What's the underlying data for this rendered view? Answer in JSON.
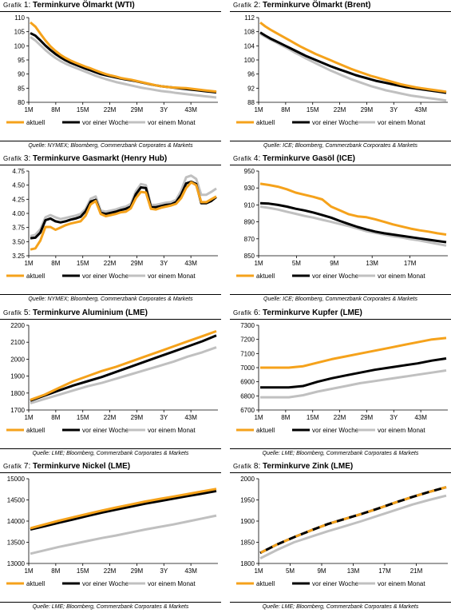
{
  "legend": {
    "aktuell": "aktuell",
    "woche": "vor einer Woche",
    "monat": "vor einem Monat"
  },
  "colors": {
    "aktuell": "#f5a21b",
    "woche": "#000000",
    "monat": "#c0c0c0"
  },
  "chart_data": [
    {
      "type": "line",
      "title_prefix": "Grafik",
      "title_num": "1:",
      "title_name": "Terminkurve Ölmarkt (WTI)",
      "source": "Quelle: NYMEX; Bloomberg, Commerzbank Corporates & Markets",
      "x_ticks": [
        "1M",
        "8M",
        "15M",
        "22M",
        "29M",
        "3Y",
        "43M"
      ],
      "ylim": [
        80,
        110
      ],
      "y_ticks": [
        80,
        85,
        90,
        95,
        100,
        105,
        110
      ],
      "series": [
        {
          "name": "aktuell",
          "values": [
            108.3,
            106.8,
            104.3,
            101.9,
            99.8,
            98.2,
            96.8,
            95.7,
            94.8,
            94.0,
            93.3,
            92.6,
            92.0,
            91.3,
            90.6,
            90.0,
            89.5,
            89.1,
            88.6,
            88.3,
            88.0,
            87.6,
            87.2,
            86.8,
            86.4,
            86.0,
            85.7,
            85.5,
            85.3,
            85.2,
            85.1,
            85.0,
            84.8,
            84.6,
            84.4,
            84.2,
            84.0,
            83.8
          ]
        },
        {
          "name": "vor einer Woche",
          "values": [
            104.5,
            103.6,
            101.9,
            100.1,
            98.5,
            97.1,
            95.9,
            94.9,
            94.0,
            93.3,
            92.6,
            91.9,
            91.3,
            90.6,
            90.0,
            89.6,
            89.2,
            88.8,
            88.4,
            88.1,
            87.8,
            87.5,
            87.1,
            86.7,
            86.3,
            86.0,
            85.7,
            85.5,
            85.3,
            85.1,
            84.9,
            84.7,
            84.5,
            84.3,
            84.1,
            83.9,
            83.7,
            83.5
          ]
        },
        {
          "name": "vor einem Monat",
          "values": [
            103.1,
            101.9,
            100.2,
            98.5,
            97.0,
            95.7,
            94.6,
            93.7,
            92.9,
            92.2,
            91.5,
            90.8,
            90.1,
            89.4,
            88.8,
            88.2,
            87.7,
            87.2,
            86.8,
            86.4,
            86.0,
            85.6,
            85.2,
            84.9,
            84.6,
            84.3,
            84.0,
            83.8,
            83.6,
            83.3,
            83.1,
            82.9,
            82.7,
            82.5,
            82.3,
            82.1,
            81.9,
            81.7
          ]
        }
      ]
    },
    {
      "type": "line",
      "title_prefix": "Grafik",
      "title_num": "2:",
      "title_name": "Terminkurve Ölmarkt (Brent)",
      "source": "Quelle: ICE; Bloomberg, Commerzbank Corporates & Markets",
      "x_ticks": [
        "1M",
        "8M",
        "15M",
        "22M",
        "29M",
        "3Y",
        "43M"
      ],
      "ylim": [
        88,
        112
      ],
      "y_ticks": [
        88,
        92,
        96,
        100,
        104,
        108,
        112
      ],
      "series": [
        {
          "name": "aktuell",
          "values": [
            110.6,
            109.5,
            108.6,
            107.8,
            107.0,
            106.2,
            105.4,
            104.6,
            103.8,
            103.1,
            102.4,
            101.7,
            101.1,
            100.5,
            99.9,
            99.3,
            98.7,
            98.1,
            97.5,
            97.0,
            96.5,
            96.0,
            95.5,
            95.1,
            94.7,
            94.3,
            93.9,
            93.5,
            93.1,
            92.8,
            92.5,
            92.2,
            92.0,
            91.8,
            91.6,
            91.4,
            91.2,
            91.0
          ]
        },
        {
          "name": "vor einer Woche",
          "values": [
            107.8,
            106.9,
            106.1,
            105.4,
            104.7,
            104.0,
            103.3,
            102.6,
            101.9,
            101.2,
            100.6,
            100.0,
            99.4,
            98.8,
            98.2,
            97.7,
            97.2,
            96.7,
            96.2,
            95.7,
            95.3,
            94.9,
            94.5,
            94.1,
            93.8,
            93.5,
            93.2,
            92.9,
            92.6,
            92.3,
            92.1,
            91.9,
            91.7,
            91.5,
            91.3,
            91.1,
            90.9,
            90.7
          ]
        },
        {
          "name": "vor einem Monat",
          "values": [
            107.4,
            106.6,
            105.8,
            105.1,
            104.3,
            103.6,
            102.8,
            102.0,
            101.3,
            100.5,
            99.8,
            99.1,
            98.4,
            97.7,
            97.0,
            96.4,
            95.8,
            95.2,
            94.6,
            94.1,
            93.6,
            93.1,
            92.6,
            92.2,
            91.8,
            91.4,
            91.1,
            90.8,
            90.5,
            90.2,
            89.9,
            89.7,
            89.5,
            89.3,
            89.1,
            88.9,
            88.7,
            88.5
          ]
        }
      ]
    },
    {
      "type": "line",
      "title_prefix": "Grafik",
      "title_num": "3:",
      "title_name": "Terminkurve Gasmarkt (Henry Hub)",
      "source": "Quelle: NYMEX; Bloomberg, Commerzbank Corporates & Markets",
      "x_ticks": [
        "1M",
        "8M",
        "15M",
        "22M",
        "29M",
        "3Y",
        "43M"
      ],
      "ylim": [
        3.25,
        4.75
      ],
      "y_ticks": [
        3.25,
        3.5,
        3.75,
        4.0,
        4.25,
        4.5,
        4.75
      ],
      "series": [
        {
          "name": "aktuell",
          "values": [
            3.36,
            3.38,
            3.52,
            3.76,
            3.76,
            3.71,
            3.75,
            3.79,
            3.82,
            3.84,
            3.86,
            3.96,
            4.16,
            4.22,
            3.99,
            3.95,
            3.97,
            3.99,
            4.02,
            4.03,
            4.09,
            4.27,
            4.38,
            4.37,
            4.08,
            4.07,
            4.1,
            4.12,
            4.14,
            4.17,
            4.27,
            4.45,
            4.55,
            4.5,
            4.2,
            4.2,
            4.25,
            4.3
          ]
        },
        {
          "name": "vor einer Woche",
          "values": [
            3.56,
            3.57,
            3.66,
            3.88,
            3.91,
            3.86,
            3.84,
            3.86,
            3.89,
            3.91,
            3.94,
            4.04,
            4.21,
            4.24,
            4.01,
            3.99,
            4.01,
            4.03,
            4.06,
            4.08,
            4.12,
            4.34,
            4.46,
            4.45,
            4.11,
            4.11,
            4.13,
            4.15,
            4.16,
            4.2,
            4.33,
            4.53,
            4.56,
            4.52,
            4.18,
            4.18,
            4.22,
            4.29
          ]
        },
        {
          "name": "vor einem Monat",
          "values": [
            3.6,
            3.62,
            3.72,
            3.93,
            3.97,
            3.93,
            3.9,
            3.92,
            3.94,
            3.96,
            3.99,
            4.08,
            4.26,
            4.3,
            4.05,
            4.03,
            4.05,
            4.07,
            4.1,
            4.12,
            4.17,
            4.39,
            4.52,
            4.5,
            4.15,
            4.15,
            4.17,
            4.19,
            4.2,
            4.24,
            4.4,
            4.64,
            4.67,
            4.61,
            4.33,
            4.33,
            4.38,
            4.44
          ]
        }
      ]
    },
    {
      "type": "line",
      "title_prefix": "Grafik",
      "title_num": "4:",
      "title_name": "Terminkurve Gasöl (ICE)",
      "source": "Quelle: ICE; Bloomberg, Commerzbank Corporates & Markets",
      "x_ticks": [
        "1M",
        "5M",
        "9M",
        "13M",
        "17M"
      ],
      "ylim": [
        850,
        950
      ],
      "y_ticks": [
        850,
        870,
        890,
        910,
        930,
        950
      ],
      "series": [
        {
          "name": "aktuell",
          "values": [
            935,
            933.5,
            931.5,
            928.5,
            924.5,
            922,
            919.5,
            916.5,
            908,
            903.5,
            899,
            896.5,
            895.5,
            893,
            890,
            887,
            884.5,
            882,
            880,
            878.5,
            876.5,
            875
          ]
        },
        {
          "name": "vor einer Woche",
          "values": [
            912,
            911.5,
            910,
            908,
            905.5,
            903.5,
            901,
            898,
            895,
            891,
            887.5,
            884,
            881,
            878.5,
            876.5,
            875,
            873.5,
            872,
            870.5,
            869,
            867.5,
            866
          ]
        },
        {
          "name": "vor einem Monat",
          "values": [
            908,
            906.5,
            904.5,
            902,
            899.5,
            897,
            895,
            892.5,
            890,
            887.5,
            885,
            882,
            879,
            877,
            875,
            873,
            871.5,
            869.5,
            868,
            866,
            864,
            862
          ]
        }
      ]
    },
    {
      "type": "line",
      "title_prefix": "Grafik",
      "title_num": "5:",
      "title_name": "Terminkurve Aluminium (LME)",
      "source": "Quelle: LME; Bloomberg, Commerzbank Corporates & Markets",
      "x_ticks": [
        "1M",
        "8M",
        "15M",
        "22M",
        "29M",
        "3Y",
        "43M"
      ],
      "ylim": [
        1700,
        2200
      ],
      "y_ticks": [
        1700,
        1800,
        1900,
        2000,
        2100,
        2200
      ],
      "series": [
        {
          "name": "aktuell",
          "values": [
            1760,
            1790,
            1830,
            1870,
            1900,
            1930,
            1955,
            1985,
            2015,
            2045,
            2075,
            2105,
            2135,
            2165
          ]
        },
        {
          "name": "vor einer Woche",
          "values": [
            1755,
            1785,
            1815,
            1845,
            1870,
            1895,
            1925,
            1955,
            1985,
            2015,
            2045,
            2075,
            2105,
            2140
          ]
        },
        {
          "name": "vor einem Monat",
          "values": [
            1740,
            1765,
            1790,
            1815,
            1840,
            1860,
            1885,
            1910,
            1935,
            1960,
            1985,
            2015,
            2040,
            2070
          ]
        }
      ]
    },
    {
      "type": "line",
      "title_prefix": "Grafik",
      "title_num": "6:",
      "title_name": "Terminkurve Kupfer (LME)",
      "source": "Quelle: LME; Bloomberg, Commerzbank Corporates & Markets",
      "x_ticks": [
        "1M",
        "8M",
        "15M",
        "22M",
        "29M",
        "3Y",
        "43M"
      ],
      "ylim": [
        6700,
        7300
      ],
      "y_ticks": [
        6700,
        6800,
        6900,
        7000,
        7100,
        7200,
        7300
      ],
      "series": [
        {
          "name": "aktuell",
          "values": [
            7000,
            7000,
            7000,
            7010,
            7035,
            7060,
            7080,
            7100,
            7120,
            7140,
            7160,
            7180,
            7200,
            7210
          ]
        },
        {
          "name": "vor einer Woche",
          "values": [
            6860,
            6860,
            6860,
            6870,
            6900,
            6925,
            6945,
            6965,
            6985,
            7000,
            7015,
            7030,
            7050,
            7065
          ]
        },
        {
          "name": "vor einem Monat",
          "values": [
            6790,
            6790,
            6790,
            6805,
            6830,
            6850,
            6870,
            6890,
            6905,
            6920,
            6935,
            6950,
            6965,
            6980
          ]
        }
      ]
    },
    {
      "type": "line",
      "title_prefix": "Grafik",
      "title_num": "7:",
      "title_name": "Terminkurve Nickel (LME)",
      "source": "Quelle: LME; Bloomberg, Commerzbank Corporates & Markets",
      "x_ticks": [
        "1M",
        "8M",
        "15M",
        "22M",
        "29M",
        "3Y",
        "43M"
      ],
      "ylim": [
        13000,
        15000
      ],
      "y_ticks": [
        13000,
        13500,
        14000,
        14500,
        15000
      ],
      "series": [
        {
          "name": "aktuell",
          "values": [
            13830,
            13920,
            14010,
            14090,
            14170,
            14250,
            14320,
            14390,
            14460,
            14520,
            14580,
            14640,
            14700,
            14760
          ]
        },
        {
          "name": "vor einer Woche",
          "values": [
            13800,
            13880,
            13960,
            14040,
            14120,
            14200,
            14270,
            14340,
            14410,
            14470,
            14530,
            14590,
            14650,
            14710
          ]
        },
        {
          "name": "vor einem Monat",
          "values": [
            13230,
            13310,
            13390,
            13460,
            13530,
            13600,
            13660,
            13730,
            13800,
            13860,
            13920,
            13990,
            14060,
            14130
          ]
        }
      ]
    },
    {
      "type": "line",
      "title_prefix": "Grafik",
      "title_num": "8:",
      "title_name": "Terminkurve Zink (LME)",
      "source": "Quelle: LME; Bloomberg, Commerzbank Corporates & Markets",
      "x_ticks": [
        "1M",
        "5M",
        "9M",
        "13M",
        "17M",
        "21M"
      ],
      "ylim": [
        1800,
        2000
      ],
      "y_ticks": [
        1800,
        1850,
        1900,
        1950,
        2000
      ],
      "series": [
        {
          "name": "aktuell",
          "values": [
            1825,
            1845,
            1862,
            1878,
            1893,
            1905,
            1917,
            1930,
            1944,
            1957,
            1969,
            1980
          ]
        },
        {
          "name": "vor einer Woche",
          "values": [
            1825,
            1845,
            1862,
            1878,
            1893,
            1905,
            1917,
            1930,
            1944,
            1957,
            1969,
            1980
          ]
        },
        {
          "name": "vor einem Monat",
          "values": [
            1812,
            1832,
            1850,
            1863,
            1876,
            1888,
            1900,
            1913,
            1926,
            1939,
            1950,
            1960
          ]
        }
      ]
    }
  ]
}
